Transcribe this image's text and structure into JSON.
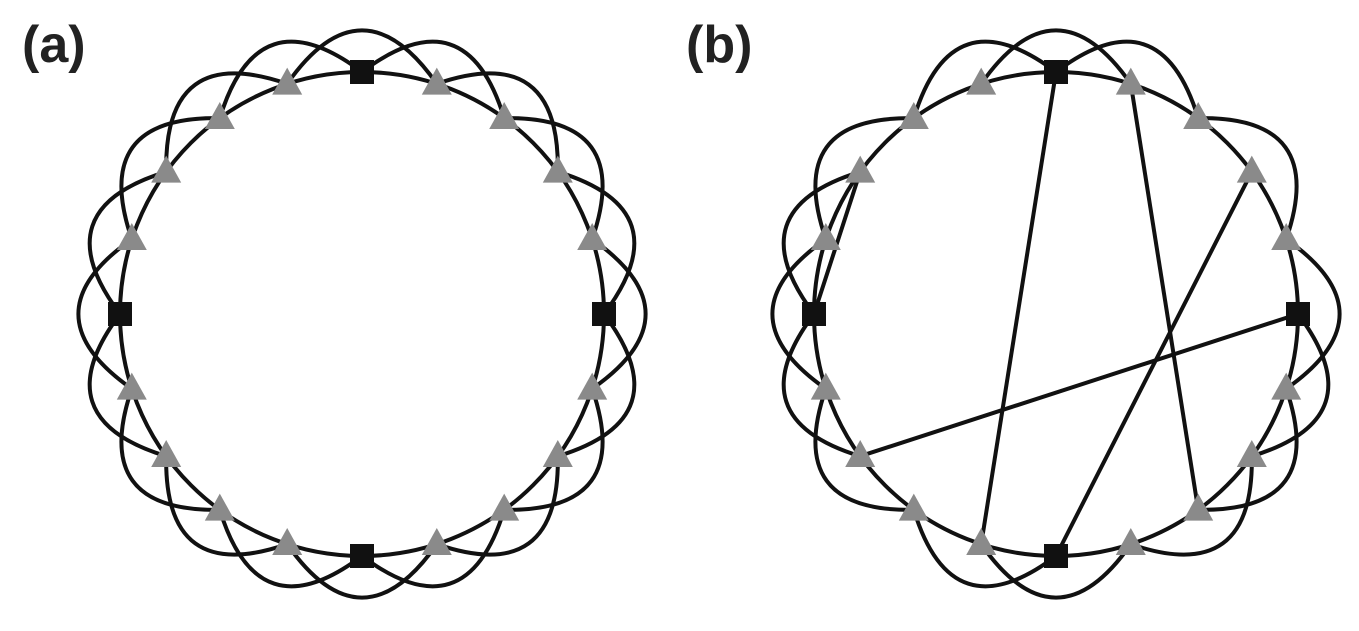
{
  "colors": {
    "edge": "#111111",
    "square_node": "#111111",
    "triangle_node": "#8a8a8a",
    "label": "#222222"
  },
  "panels": [
    {
      "label": "(a)",
      "node_count": 20,
      "square_nodes": [
        0,
        5,
        10,
        15
      ],
      "neighbor_range": 2,
      "shortcuts": []
    },
    {
      "label": "(b)",
      "node_count": 20,
      "square_nodes": [
        0,
        5,
        10,
        15
      ],
      "neighbor_range": 2,
      "removed_chords": [
        [
          1,
          3
        ],
        [
          3,
          5
        ],
        [
          8,
          10
        ],
        [
          11,
          13
        ],
        [
          17,
          19
        ]
      ],
      "shortcuts": [
        [
          1,
          8
        ],
        [
          3,
          10
        ],
        [
          0,
          11
        ],
        [
          5,
          13
        ],
        [
          15,
          17
        ]
      ]
    }
  ]
}
